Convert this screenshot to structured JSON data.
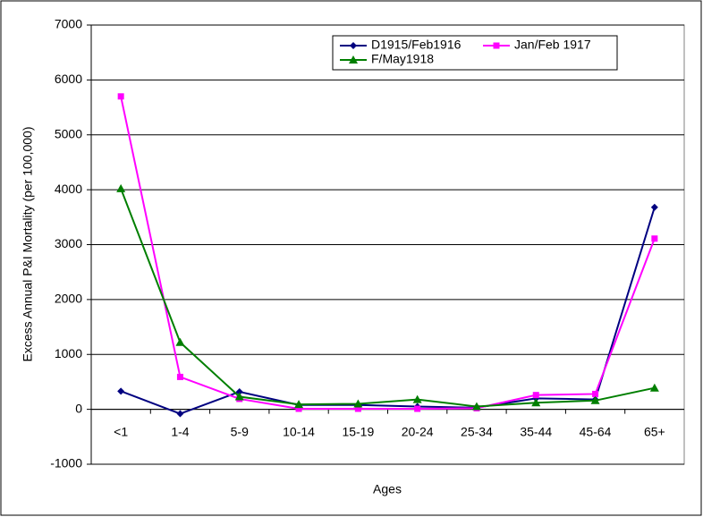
{
  "chart_data": {
    "type": "line",
    "y_label": "Excess Annual P&I Mortality (per 100,000)",
    "x_label": "Ages",
    "categories": [
      "<1",
      "1-4",
      "5-9",
      "10-14",
      "15-19",
      "20-24",
      "25-34",
      "35-44",
      "45-64",
      "65+"
    ],
    "series": [
      {
        "name": "D1915/Feb1916",
        "color": "#000080",
        "marker": "diamond",
        "values": [
          330,
          -80,
          320,
          80,
          80,
          50,
          30,
          200,
          180,
          3680
        ]
      },
      {
        "name": "Jan/Feb 1917",
        "color": "#ff00ff",
        "marker": "square",
        "values": [
          5700,
          590,
          190,
          10,
          10,
          10,
          20,
          260,
          280,
          3110
        ]
      },
      {
        "name": "F/May1918",
        "color": "#007f00",
        "marker": "triangle",
        "values": [
          4020,
          1220,
          230,
          90,
          100,
          180,
          50,
          120,
          160,
          390
        ]
      }
    ],
    "ylim": [
      -1000,
      7000
    ],
    "yticks": [
      -1000,
      0,
      1000,
      2000,
      3000,
      4000,
      5000,
      6000,
      7000
    ],
    "grid": true
  }
}
